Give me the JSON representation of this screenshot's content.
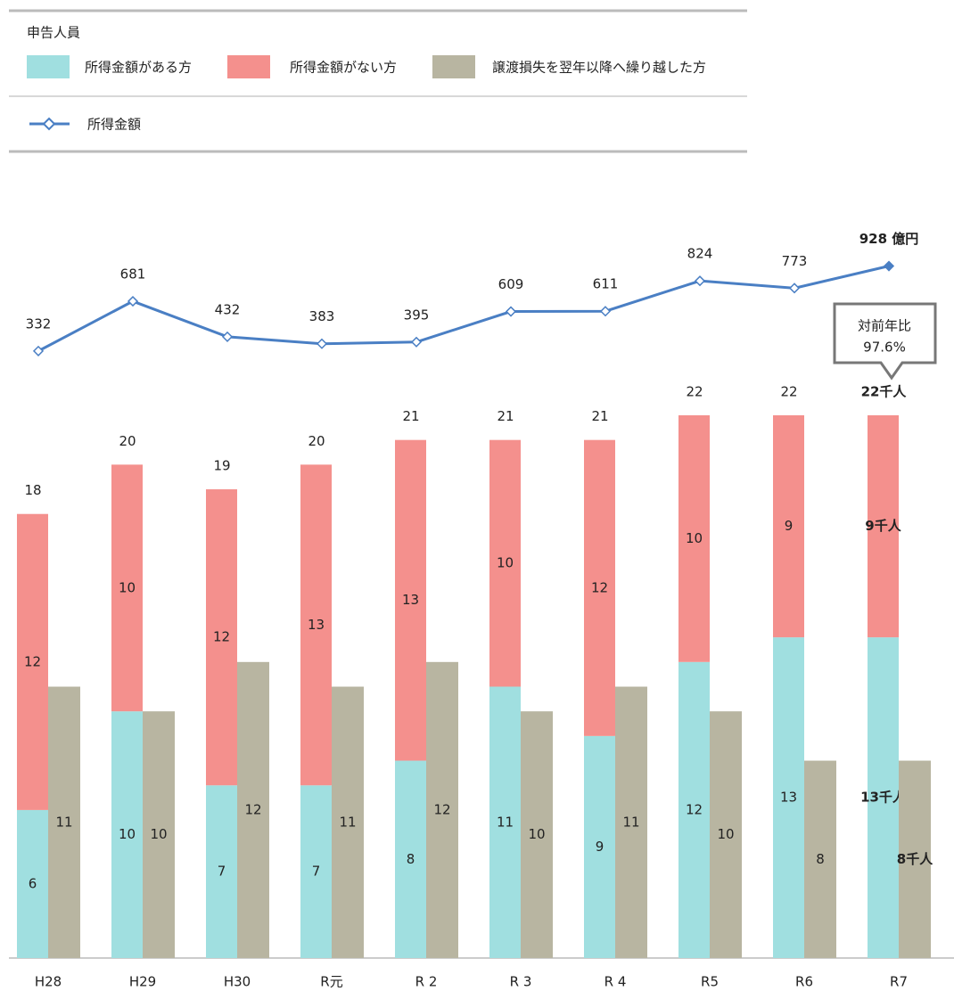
{
  "chart_data": {
    "type": "bar-line",
    "legend_title": "申告人員",
    "categories": [
      "H28",
      "H29",
      "H30",
      "R元",
      "R 2",
      "R 3",
      "R 4",
      "R5",
      "R6",
      "R7"
    ],
    "series": [
      {
        "name": "所得金額がある方",
        "color": "#a0dfe0",
        "stack": "a",
        "values": [
          6,
          10,
          7,
          7,
          8,
          11,
          9,
          12,
          13,
          13
        ],
        "value_labels": [
          "6",
          "10",
          "7",
          "7",
          "8",
          "11",
          "9",
          "12",
          "13",
          "13千人"
        ]
      },
      {
        "name": "所得金額がない方",
        "color": "#f4908d",
        "stack": "a",
        "values": [
          12,
          10,
          12,
          13,
          13,
          10,
          12,
          10,
          9,
          9
        ],
        "value_labels": [
          "12",
          "10",
          "12",
          "13",
          "13",
          "10",
          "12",
          "10",
          "9",
          "9千人"
        ]
      },
      {
        "name": "譲渡損失を翌年以降へ繰り越した方",
        "color": "#b8b5a1",
        "stack": "b",
        "values": [
          11,
          10,
          12,
          11,
          12,
          10,
          11,
          10,
          8,
          8
        ],
        "value_labels": [
          "11",
          "10",
          "12",
          "11",
          "12",
          "10",
          "11",
          "10",
          "8",
          "8千人"
        ]
      },
      {
        "name": "所得金額",
        "color": "#4a7fc4",
        "axis": "y2",
        "type": "line",
        "values": [
          332,
          681,
          432,
          383,
          395,
          609,
          611,
          824,
          773,
          928
        ],
        "value_labels": [
          "332",
          "681",
          "432",
          "383",
          "395",
          "609",
          "611",
          "824",
          "773",
          "928 億円"
        ]
      }
    ],
    "totals": {
      "values": [
        18,
        20,
        19,
        20,
        21,
        21,
        21,
        22,
        22,
        22
      ],
      "value_labels": [
        "18",
        "20",
        "19",
        "20",
        "21",
        "21",
        "21",
        "22",
        "22",
        "22千人"
      ]
    },
    "annotation": {
      "title": "対前年比",
      "text": "97.6%"
    },
    "ylim": [
      0,
      22
    ],
    "y2lim": [
      0,
      1000
    ]
  }
}
